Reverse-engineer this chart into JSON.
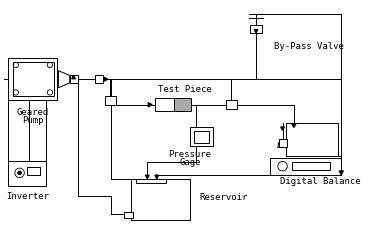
{
  "background_color": "#ffffff",
  "line_color": "#000000",
  "labels": {
    "geared_pump": [
      "Geared",
      "Pump"
    ],
    "inverter": "Inverter",
    "by_pass_valve": "By-Pass Valve",
    "test_piece": "Test Piece",
    "pressure_gage": [
      "Pressure",
      "Gage"
    ],
    "digital_balance": "Digital Balance",
    "reservoir": "Reservoir"
  },
  "font_size": 6.5
}
